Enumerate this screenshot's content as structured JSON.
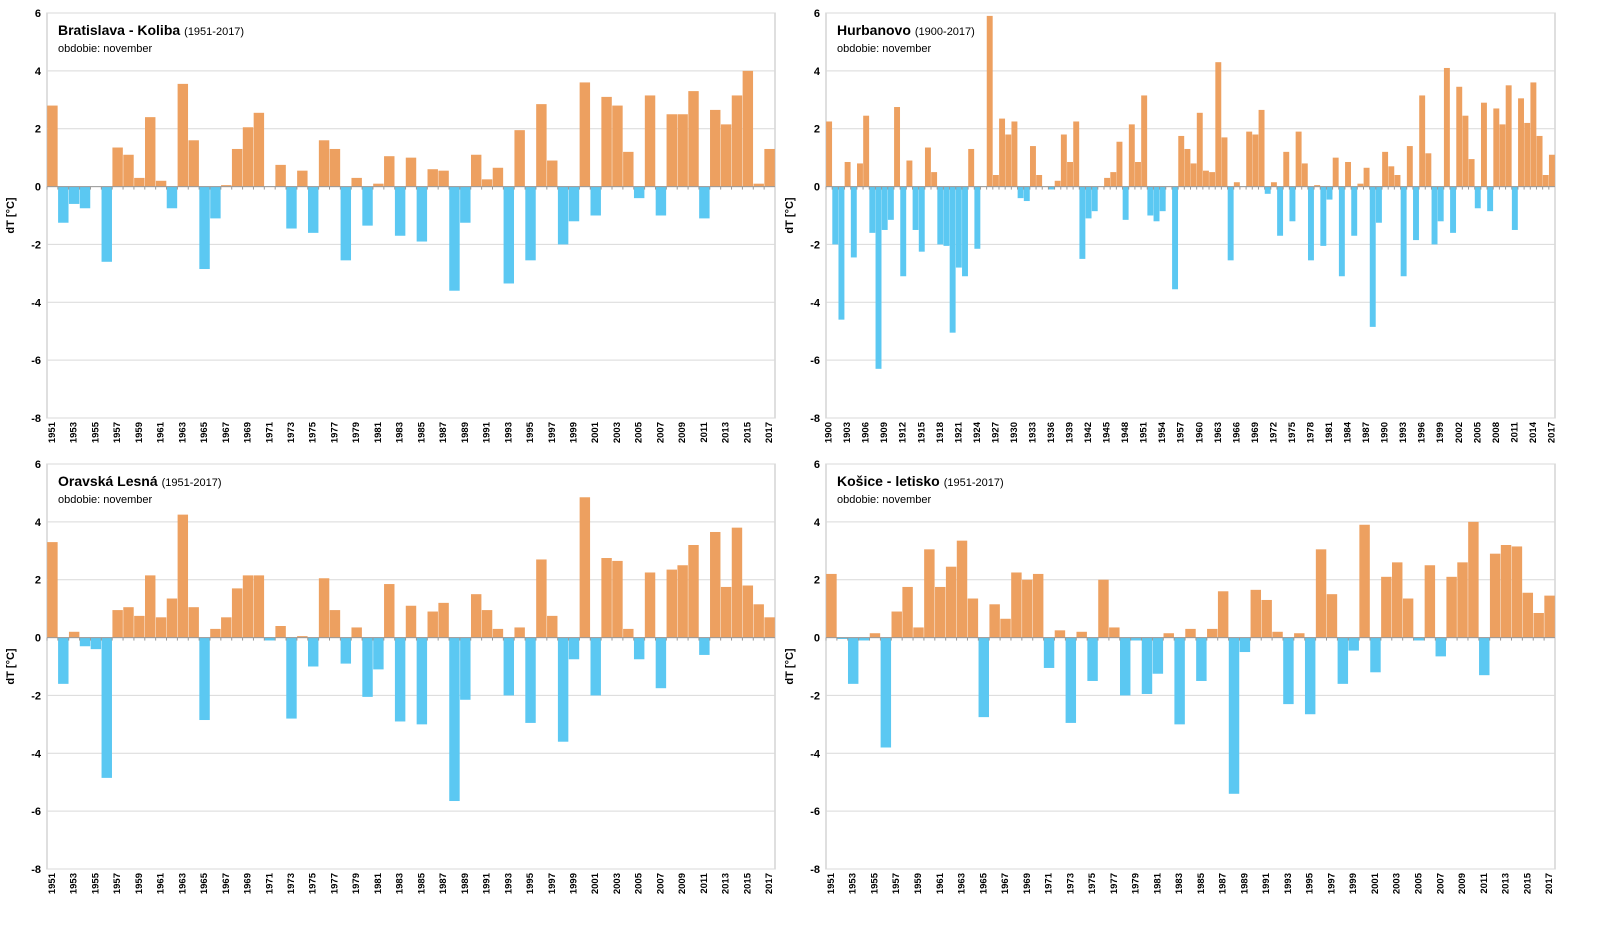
{
  "chart_data": [
    {
      "type": "bar",
      "title": "Bratislava - Koliba",
      "subtitle": "(1951-2017)",
      "note": "obdobie: november",
      "y_label": "dT [°C]",
      "categories": [
        "1951",
        null,
        "1953",
        null,
        "1955",
        null,
        "1957",
        null,
        "1959",
        null,
        "1961",
        null,
        "1963",
        null,
        "1965",
        null,
        "1967",
        null,
        "1969",
        null,
        "1971",
        null,
        "1973",
        null,
        "1975",
        null,
        "1977",
        null,
        "1979",
        null,
        "1981",
        null,
        "1983",
        null,
        "1985",
        null,
        "1987",
        null,
        "1989",
        null,
        "1991",
        null,
        "1993",
        null,
        "1995",
        null,
        "1997",
        null,
        "1999",
        null,
        "2001",
        null,
        "2003",
        null,
        "2005",
        null,
        "2007",
        null,
        "2009",
        null,
        "2011",
        null,
        "2013",
        null,
        "2015",
        null,
        "2017"
      ],
      "values": [
        2.8,
        -1.25,
        -0.6,
        -0.75,
        0,
        -2.6,
        1.35,
        1.1,
        0.3,
        2.4,
        0.2,
        -0.75,
        3.55,
        1.6,
        -2.85,
        -1.1,
        0.05,
        1.3,
        2.05,
        2.55,
        0,
        0.75,
        -1.45,
        0.55,
        -1.6,
        1.6,
        1.3,
        -2.55,
        0.3,
        -1.35,
        0.1,
        1.05,
        -1.7,
        1.0,
        -1.9,
        0.6,
        0.55,
        -3.6,
        -1.25,
        1.1,
        0.25,
        0.65,
        -3.35,
        1.95,
        -2.55,
        2.85,
        0.9,
        -2.0,
        -1.2,
        3.6,
        -1.0,
        3.1,
        2.8,
        1.2,
        -0.4,
        3.15,
        -1.0,
        2.5,
        2.5,
        3.3,
        -1.1,
        2.65,
        2.15,
        3.15,
        4.0,
        0.1,
        1.3
      ],
      "ylim": [
        -8,
        6
      ],
      "yticks": [
        -8,
        -6,
        -4,
        -2,
        0,
        2,
        4,
        6
      ],
      "grid": true,
      "positive_color": "#eda060",
      "negative_color": "#5bc8f2"
    },
    {
      "type": "bar",
      "title": "Hurbanovo",
      "subtitle": "(1900-2017)",
      "note": "obdobie: november",
      "y_label": "dT [°C]",
      "categories": [
        "1900",
        null,
        null,
        "1903",
        null,
        null,
        "1906",
        null,
        null,
        "1909",
        null,
        null,
        "1912",
        null,
        null,
        "1915",
        null,
        null,
        "1918",
        null,
        null,
        "1921",
        null,
        null,
        "1924",
        null,
        null,
        "1927",
        null,
        null,
        "1930",
        null,
        null,
        "1933",
        null,
        null,
        "1936",
        null,
        null,
        "1939",
        null,
        null,
        "1942",
        null,
        null,
        "1945",
        null,
        null,
        "1948",
        null,
        null,
        "1951",
        null,
        null,
        "1954",
        null,
        null,
        "1957",
        null,
        null,
        "1960",
        null,
        null,
        "1963",
        null,
        null,
        "1966",
        null,
        null,
        "1969",
        null,
        null,
        "1972",
        null,
        null,
        "1975",
        null,
        null,
        "1978",
        null,
        null,
        "1981",
        null,
        null,
        "1984",
        null,
        null,
        "1987",
        null,
        null,
        "1990",
        null,
        null,
        "1993",
        null,
        null,
        "1996",
        null,
        null,
        "1999",
        null,
        null,
        "2002",
        null,
        null,
        "2005",
        null,
        null,
        "2008",
        null,
        null,
        "2011",
        null,
        null,
        "2014",
        null,
        null,
        "2017"
      ],
      "values": [
        2.25,
        -2.0,
        -4.6,
        0.85,
        -2.45,
        0.8,
        2.45,
        -1.6,
        -6.3,
        -1.5,
        -1.15,
        2.75,
        -3.1,
        0.9,
        -1.5,
        -2.25,
        1.35,
        0.5,
        -2.0,
        -2.05,
        -5.05,
        -2.8,
        -3.1,
        1.3,
        -2.15,
        0,
        5.9,
        0.4,
        2.35,
        1.8,
        2.25,
        -0.4,
        -0.5,
        1.4,
        0.4,
        0,
        -0.1,
        0.2,
        1.8,
        0.85,
        2.25,
        -2.5,
        -1.1,
        -0.85,
        0,
        0.3,
        0.5,
        1.55,
        -1.15,
        2.15,
        0.85,
        3.15,
        -1.0,
        -1.2,
        -0.85,
        0,
        -3.55,
        1.75,
        1.3,
        0.8,
        2.55,
        0.55,
        0.5,
        4.3,
        1.7,
        -2.55,
        0.15,
        0,
        1.9,
        1.8,
        2.65,
        -0.25,
        0.15,
        -1.7,
        1.2,
        -1.2,
        1.9,
        0.8,
        -2.55,
        0.05,
        -2.05,
        -0.45,
        1.0,
        -3.1,
        0.85,
        -1.7,
        0.1,
        0.65,
        -4.85,
        -1.25,
        1.2,
        0.7,
        0.4,
        -3.1,
        1.4,
        -1.85,
        3.15,
        1.15,
        -2.0,
        -1.2,
        4.1,
        -1.6,
        3.45,
        2.45,
        0.95,
        -0.75,
        2.9,
        -0.85,
        2.7,
        2.15,
        3.5,
        -1.5,
        3.05,
        2.2,
        3.6,
        1.75,
        0.4,
        1.1
      ],
      "ylim": [
        -8,
        6
      ],
      "yticks": [
        -8,
        -6,
        -4,
        -2,
        0,
        2,
        4,
        6
      ],
      "grid": true,
      "positive_color": "#eda060",
      "negative_color": "#5bc8f2"
    },
    {
      "type": "bar",
      "title": "Oravská Lesná",
      "subtitle": "(1951-2017)",
      "note": "obdobie: november",
      "y_label": "dT [°C]",
      "categories": [
        "1951",
        null,
        "1953",
        null,
        "1955",
        null,
        "1957",
        null,
        "1959",
        null,
        "1961",
        null,
        "1963",
        null,
        "1965",
        null,
        "1967",
        null,
        "1969",
        null,
        "1971",
        null,
        "1973",
        null,
        "1975",
        null,
        "1977",
        null,
        "1979",
        null,
        "1981",
        null,
        "1983",
        null,
        "1985",
        null,
        "1987",
        null,
        "1989",
        null,
        "1991",
        null,
        "1993",
        null,
        "1995",
        null,
        "1997",
        null,
        "1999",
        null,
        "2001",
        null,
        "2003",
        null,
        "2005",
        null,
        "2007",
        null,
        "2009",
        null,
        "2011",
        null,
        "2013",
        null,
        "2015",
        null,
        "2017"
      ],
      "values": [
        3.3,
        -1.6,
        0.2,
        -0.3,
        -0.4,
        -4.85,
        0.95,
        1.05,
        0.75,
        2.15,
        0.7,
        1.35,
        4.25,
        1.05,
        -2.85,
        0.3,
        0.7,
        1.7,
        2.15,
        2.15,
        -0.1,
        0.4,
        -2.8,
        0.05,
        -1.0,
        2.05,
        0.95,
        -0.9,
        0.35,
        -2.05,
        -1.1,
        1.85,
        -2.9,
        1.1,
        -3.0,
        0.9,
        1.2,
        -5.65,
        -2.15,
        1.5,
        0.95,
        0.3,
        -2.0,
        0.35,
        -2.95,
        2.7,
        0.75,
        -3.6,
        -0.75,
        4.85,
        -2.0,
        2.75,
        2.65,
        0.3,
        -0.75,
        2.25,
        -1.75,
        2.35,
        2.5,
        3.2,
        -0.6,
        3.65,
        1.75,
        3.8,
        1.8,
        1.15,
        0.7
      ],
      "ylim": [
        -8,
        6
      ],
      "yticks": [
        -8,
        -6,
        -4,
        -2,
        0,
        2,
        4,
        6
      ],
      "grid": true,
      "positive_color": "#eda060",
      "negative_color": "#5bc8f2"
    },
    {
      "type": "bar",
      "title": "Košice - letisko",
      "subtitle": "(1951-2017)",
      "note": "obdobie: november",
      "y_label": "dT [°C]",
      "categories": [
        "1951",
        null,
        "1953",
        null,
        "1955",
        null,
        "1957",
        null,
        "1959",
        null,
        "1961",
        null,
        "1963",
        null,
        "1965",
        null,
        "1967",
        null,
        "1969",
        null,
        "1971",
        null,
        "1973",
        null,
        "1975",
        null,
        "1977",
        null,
        "1979",
        null,
        "1981",
        null,
        "1983",
        null,
        "1985",
        null,
        "1987",
        null,
        "1989",
        null,
        "1991",
        null,
        "1993",
        null,
        "1995",
        null,
        "1997",
        null,
        "1999",
        null,
        "2001",
        null,
        "2003",
        null,
        "2005",
        null,
        "2007",
        null,
        "2009",
        null,
        "2011",
        null,
        "2013",
        null,
        "2015",
        null,
        "2017"
      ],
      "values": [
        2.2,
        -0.05,
        -1.6,
        -0.1,
        0.15,
        -3.8,
        0.9,
        1.75,
        0.35,
        3.05,
        1.75,
        2.45,
        3.35,
        1.35,
        -2.75,
        1.15,
        0.65,
        2.25,
        2.0,
        2.2,
        -1.05,
        0.25,
        -2.95,
        0.2,
        -1.5,
        2.0,
        0.35,
        -2.0,
        -0.1,
        -1.95,
        -1.25,
        0.15,
        -3.0,
        0.3,
        -1.5,
        0.3,
        1.6,
        -5.4,
        -0.5,
        1.65,
        1.3,
        0.2,
        -2.3,
        0.15,
        -2.65,
        3.05,
        1.5,
        -1.6,
        -0.45,
        3.9,
        -1.2,
        2.1,
        2.6,
        1.35,
        -0.1,
        2.5,
        -0.65,
        2.1,
        2.6,
        4.0,
        -1.3,
        2.9,
        3.2,
        3.15,
        1.55,
        0.85,
        1.45
      ],
      "ylim": [
        -8,
        6
      ],
      "yticks": [
        -8,
        -6,
        -4,
        -2,
        0,
        2,
        4,
        6
      ],
      "grid": true,
      "positive_color": "#eda060",
      "negative_color": "#5bc8f2"
    }
  ]
}
